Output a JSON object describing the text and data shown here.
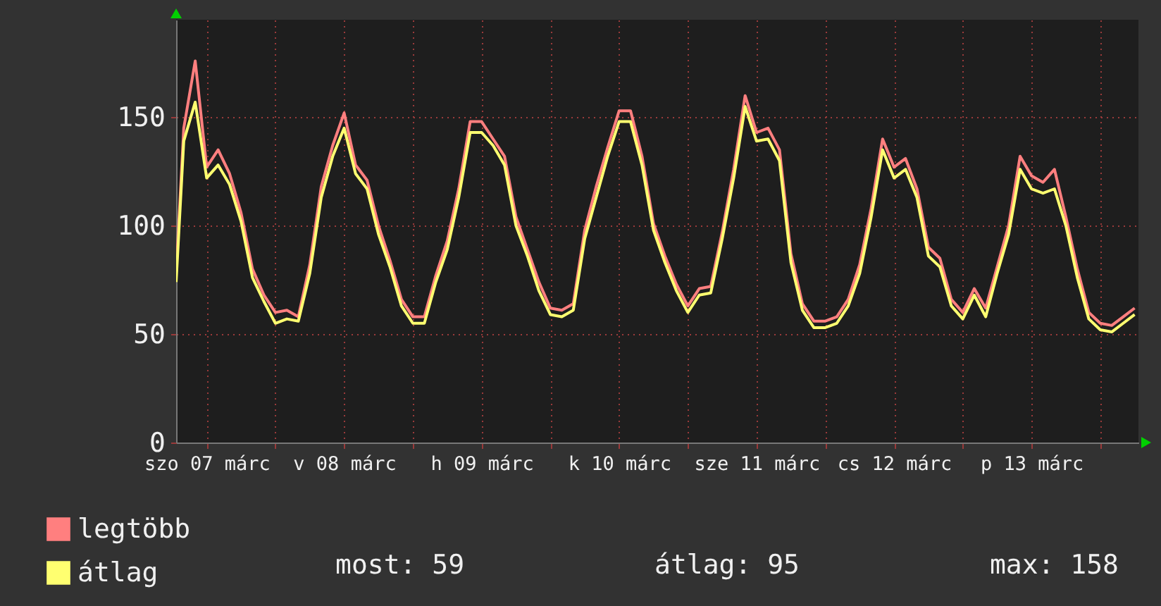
{
  "chart_data": {
    "type": "line",
    "x": [
      "--03-07T06:40",
      "--03-07T08:00",
      "--03-07T10:00",
      "--03-07T12:00",
      "--03-07T14:00",
      "--03-07T16:00",
      "--03-07T18:00",
      "--03-07T20:00",
      "--03-07T22:00",
      "--03-08T00:00",
      "--03-08T02:00",
      "--03-08T04:00",
      "--03-08T06:00",
      "--03-08T08:00",
      "--03-08T10:00",
      "--03-08T12:00",
      "--03-08T14:00",
      "--03-08T16:00",
      "--03-08T18:00",
      "--03-08T20:00",
      "--03-08T22:00",
      "--03-09T00:00",
      "--03-09T02:00",
      "--03-09T04:00",
      "--03-09T06:00",
      "--03-09T08:00",
      "--03-09T10:00",
      "--03-09T12:00",
      "--03-09T14:00",
      "--03-09T16:00",
      "--03-09T18:00",
      "--03-09T20:00",
      "--03-09T22:00",
      "--03-10T00:00",
      "--03-10T02:00",
      "--03-10T04:00",
      "--03-10T06:00",
      "--03-10T08:00",
      "--03-10T10:00",
      "--03-10T12:00",
      "--03-10T14:00",
      "--03-10T16:00",
      "--03-10T18:00",
      "--03-10T20:00",
      "--03-10T22:00",
      "--03-11T00:00",
      "--03-11T02:00",
      "--03-11T04:00",
      "--03-11T06:00",
      "--03-11T08:00",
      "--03-11T10:00",
      "--03-11T12:00",
      "--03-11T14:00",
      "--03-11T16:00",
      "--03-11T18:00",
      "--03-11T20:00",
      "--03-11T22:00",
      "--03-12T00:00",
      "--03-12T02:00",
      "--03-12T04:00",
      "--03-12T06:00",
      "--03-12T08:00",
      "--03-12T10:00",
      "--03-12T12:00",
      "--03-12T14:00",
      "--03-12T16:00",
      "--03-12T18:00",
      "--03-12T20:00",
      "--03-12T22:00",
      "--03-13T00:00",
      "--03-13T02:00",
      "--03-13T04:00",
      "--03-13T06:00",
      "--03-13T08:00",
      "--03-13T10:00",
      "--03-13T12:00",
      "--03-13T14:00",
      "--03-13T16:00",
      "--03-13T18:00",
      "--03-13T20:00",
      "--03-13T22:00",
      "--03-14T00:00",
      "--03-14T02:00",
      "--03-14T04:00",
      "--03-14T06:00"
    ],
    "series": [
      {
        "name": "legtöbb",
        "color": "#ff7f7f",
        "values": [
          78,
          145,
          176,
          127,
          135,
          124,
          106,
          80,
          68,
          60,
          61,
          58,
          82,
          118,
          137,
          152,
          128,
          121,
          100,
          84,
          66,
          58,
          58,
          77,
          93,
          117,
          148,
          148,
          140,
          132,
          104,
          89,
          74,
          62,
          61,
          64,
          98,
          118,
          136,
          153,
          153,
          132,
          101,
          86,
          73,
          63,
          71,
          72,
          97,
          126,
          160,
          143,
          145,
          135,
          87,
          64,
          56,
          56,
          58,
          66,
          82,
          108,
          140,
          127,
          131,
          117,
          90,
          85,
          66,
          60,
          71,
          62,
          81,
          100,
          132,
          123,
          120,
          126,
          104,
          80,
          60,
          55,
          54,
          58,
          62
        ]
      },
      {
        "name": "átlag",
        "color": "#ffff70",
        "values": [
          74,
          139,
          157,
          122,
          128,
          119,
          102,
          76,
          65,
          55,
          57,
          56,
          78,
          113,
          132,
          145,
          124,
          117,
          96,
          81,
          63,
          55,
          55,
          74,
          89,
          113,
          143,
          143,
          137,
          128,
          100,
          86,
          70,
          59,
          58,
          61,
          94,
          113,
          132,
          148,
          148,
          128,
          98,
          83,
          70,
          60,
          68,
          69,
          94,
          122,
          155,
          139,
          140,
          130,
          83,
          61,
          53,
          53,
          55,
          63,
          78,
          104,
          135,
          122,
          126,
          113,
          86,
          81,
          63,
          57,
          68,
          58,
          78,
          96,
          126,
          117,
          115,
          117,
          100,
          76,
          57,
          52,
          51,
          55,
          59
        ]
      }
    ],
    "xlim": [
      "--03-07T06:40",
      "--03-14T06:40"
    ],
    "xticks": [
      {
        "value": "--03-07T12:00",
        "label": "szo 07 márc"
      },
      {
        "value": "--03-08T00:00",
        "label": null
      },
      {
        "value": "--03-08T12:00",
        "label": "v 08 márc"
      },
      {
        "value": "--03-09T00:00",
        "label": null
      },
      {
        "value": "--03-09T12:00",
        "label": "h 09 márc"
      },
      {
        "value": "--03-10T00:00",
        "label": null
      },
      {
        "value": "--03-10T12:00",
        "label": "k 10 márc"
      },
      {
        "value": "--03-11T00:00",
        "label": null
      },
      {
        "value": "--03-11T12:00",
        "label": "sze 11 márc"
      },
      {
        "value": "--03-12T00:00",
        "label": null
      },
      {
        "value": "--03-12T12:00",
        "label": "cs 12 márc"
      },
      {
        "value": "--03-13T00:00",
        "label": null
      },
      {
        "value": "--03-13T12:00",
        "label": "p 13 márc"
      },
      {
        "value": "--03-14T00:00",
        "label": null
      }
    ],
    "ylim": [
      0,
      195
    ],
    "yticks": [
      0,
      50,
      100,
      150
    ],
    "grid": true,
    "legend": "bottom left",
    "annotations": [
      "most: 59",
      "átlag: 95",
      "max: 158"
    ]
  }
}
